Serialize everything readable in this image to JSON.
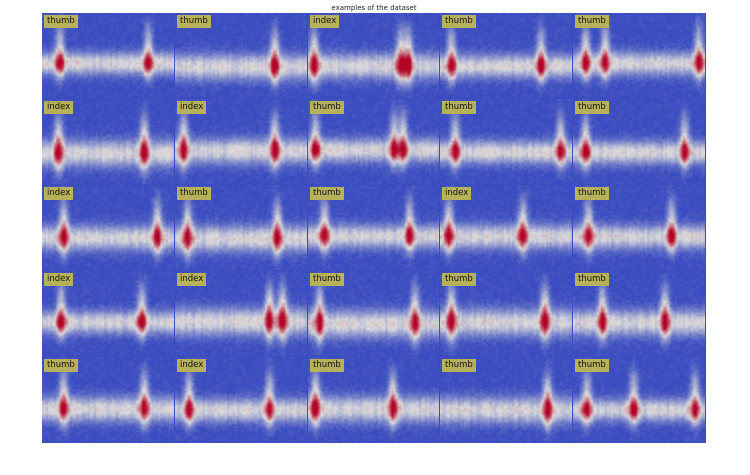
{
  "figure": {
    "title": "examples of the dataset"
  },
  "colormap": {
    "name": "coolwarm",
    "low": "#3a4cc0",
    "mid": "#dddcdb",
    "high": "#b40426",
    "label_background": "#b6b15a"
  },
  "grid": {
    "rows": 5,
    "cols": 5
  },
  "samples": [
    {
      "label": "thumb",
      "bursts": [
        0.13,
        0.81
      ]
    },
    {
      "label": "thumb",
      "bursts": [
        0.76
      ]
    },
    {
      "label": "index",
      "bursts": [
        0.04,
        0.71,
        0.77
      ]
    },
    {
      "label": "thumb",
      "bursts": [
        0.08,
        0.77
      ]
    },
    {
      "label": "thumb",
      "bursts": [
        0.09,
        0.24,
        0.96
      ]
    },
    {
      "label": "index",
      "bursts": [
        0.12,
        0.78
      ]
    },
    {
      "label": "index",
      "bursts": [
        0.06,
        0.76
      ]
    },
    {
      "label": "thumb",
      "bursts": [
        0.05,
        0.66,
        0.73
      ]
    },
    {
      "label": "thumb",
      "bursts": [
        0.11,
        0.92
      ]
    },
    {
      "label": "thumb",
      "bursts": [
        0.09,
        0.85
      ]
    },
    {
      "label": "index",
      "bursts": [
        0.16,
        0.88
      ]
    },
    {
      "label": "thumb",
      "bursts": [
        0.09,
        0.78
      ]
    },
    {
      "label": "thumb",
      "bursts": [
        0.12,
        0.78
      ]
    },
    {
      "label": "index",
      "bursts": [
        0.06,
        0.63
      ]
    },
    {
      "label": "thumb",
      "bursts": [
        0.11,
        0.75
      ]
    },
    {
      "label": "index",
      "bursts": [
        0.14,
        0.76
      ]
    },
    {
      "label": "index",
      "bursts": [
        0.72,
        0.82
      ]
    },
    {
      "label": "thumb",
      "bursts": [
        0.08,
        0.82
      ]
    },
    {
      "label": "thumb",
      "bursts": [
        0.08,
        0.8
      ]
    },
    {
      "label": "thumb",
      "bursts": [
        0.22,
        0.7
      ]
    },
    {
      "label": "thumb",
      "bursts": [
        0.16,
        0.78
      ]
    },
    {
      "label": "index",
      "bursts": [
        0.1,
        0.72
      ]
    },
    {
      "label": "thumb",
      "bursts": [
        0.05,
        0.65
      ]
    },
    {
      "label": "thumb",
      "bursts": [
        0.82
      ]
    },
    {
      "label": "thumb",
      "bursts": [
        0.1,
        0.46,
        0.93
      ]
    }
  ]
}
